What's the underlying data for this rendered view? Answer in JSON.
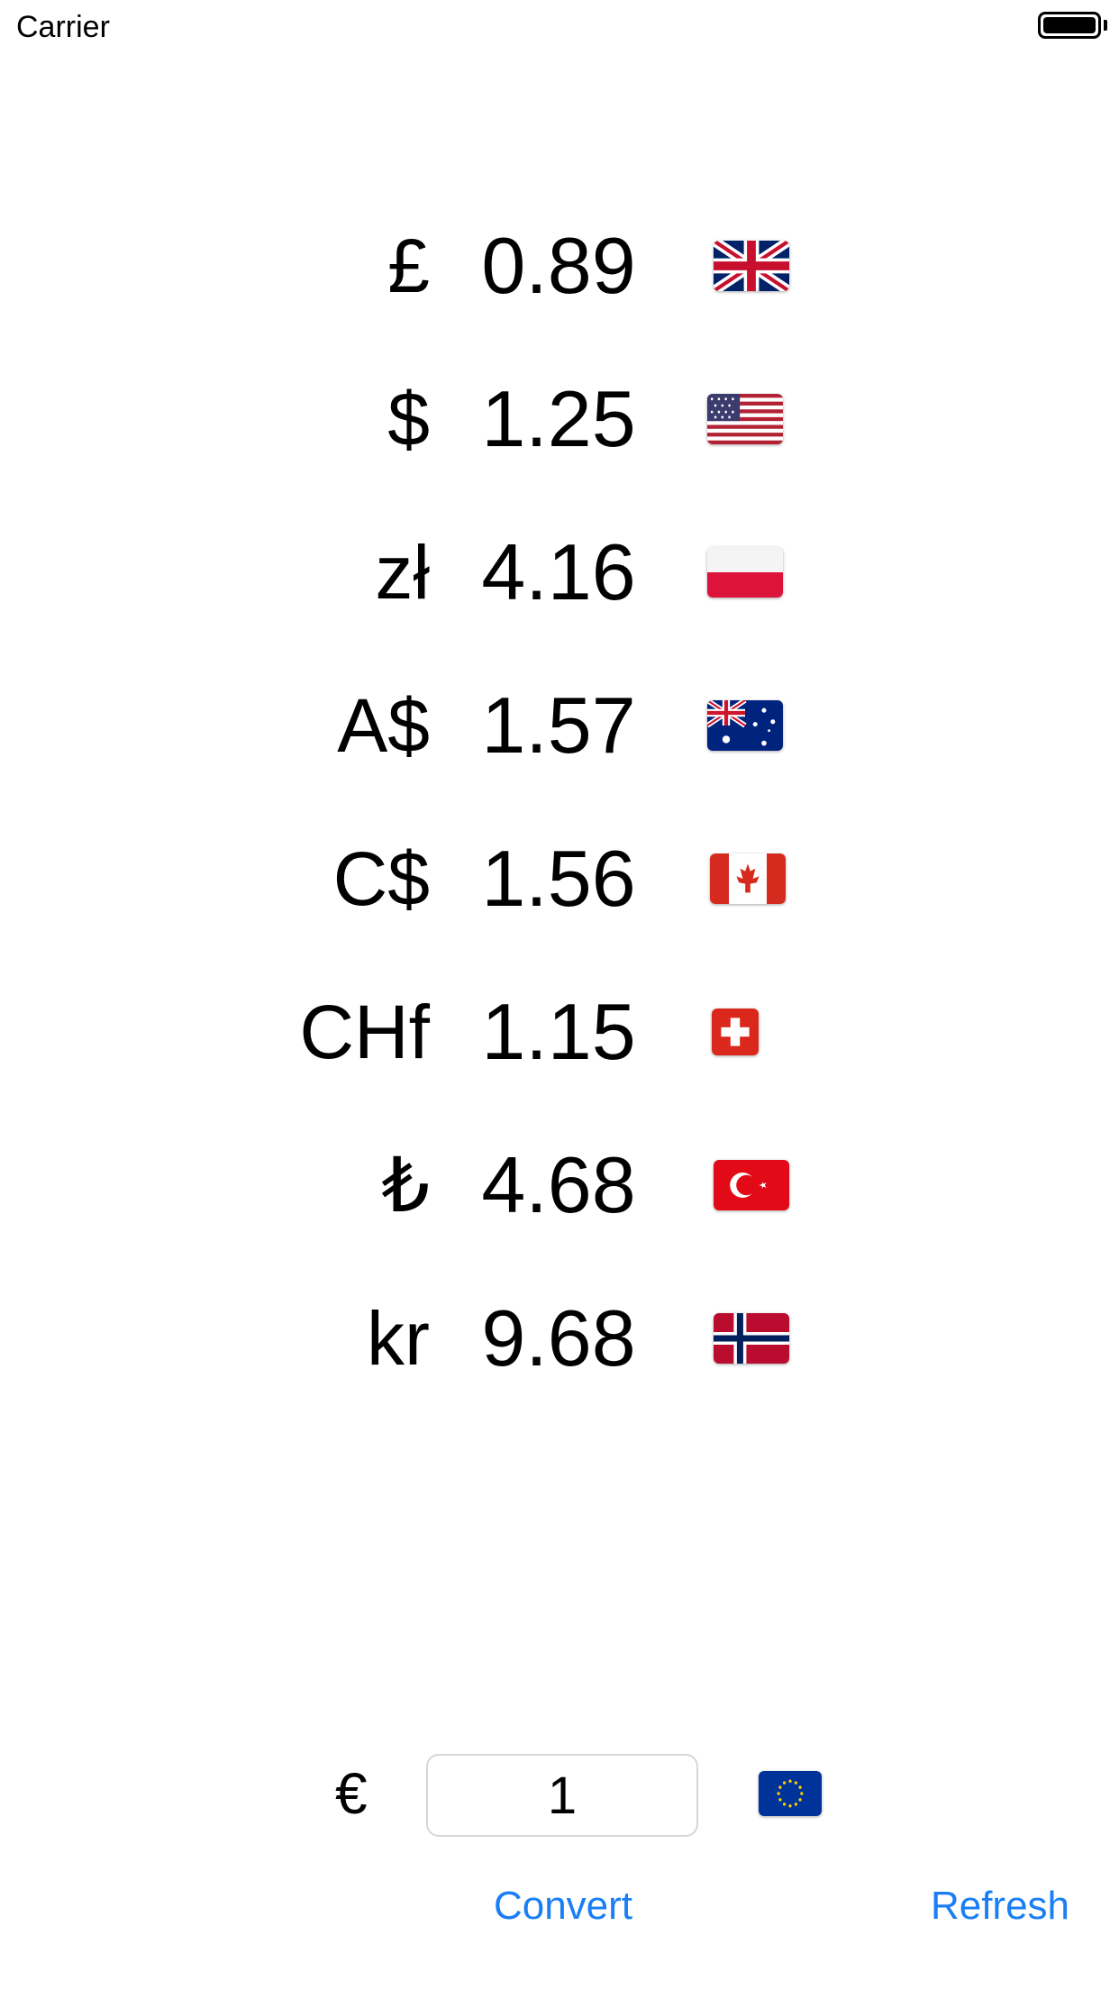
{
  "status_bar": {
    "carrier": "Carrier"
  },
  "rates": [
    {
      "symbol": "£",
      "value": "0.89",
      "flag": "uk-flag-icon"
    },
    {
      "symbol": "$",
      "value": "1.25",
      "flag": "us-flag-icon"
    },
    {
      "symbol": "zł",
      "value": "4.16",
      "flag": "poland-flag-icon"
    },
    {
      "symbol": "A$",
      "value": "1.57",
      "flag": "australia-flag-icon"
    },
    {
      "symbol": "C$",
      "value": "1.56",
      "flag": "canada-flag-icon"
    },
    {
      "symbol": "CHf",
      "value": "1.15",
      "flag": "switzerland-flag-icon"
    },
    {
      "symbol": "₺",
      "value": "4.68",
      "flag": "turkey-flag-icon"
    },
    {
      "symbol": "kr",
      "value": "9.68",
      "flag": "norway-flag-icon"
    }
  ],
  "input": {
    "symbol": "€",
    "value": "1",
    "flag": "eu-flag-icon"
  },
  "buttons": {
    "convert": "Convert",
    "refresh": "Refresh"
  },
  "colors": {
    "accent": "#1a7ef5",
    "background": "#ffffff",
    "text": "#000000"
  }
}
